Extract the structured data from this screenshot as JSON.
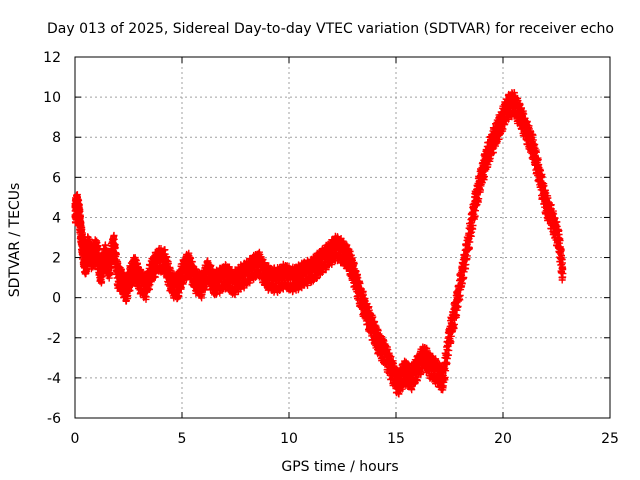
{
  "chart_data": {
    "type": "scatter",
    "title": "Day 013 of 2025, Sidereal Day-to-day VTEC variation (SDTVAR) for receiver echo",
    "xlabel": "GPS time / hours",
    "ylabel": "SDTVAR / TECUs",
    "xlim": [
      0,
      25
    ],
    "ylim": [
      -6,
      12
    ],
    "xticks": [
      "0",
      "5",
      "10",
      "15",
      "20",
      "25"
    ],
    "yticks": [
      "-6",
      "-4",
      "-2",
      "0",
      "2",
      "4",
      "6",
      "8",
      "10",
      "12"
    ],
    "grid": true,
    "marker": "plus",
    "color": "#ff0000",
    "series": [
      {
        "name": "SDTVAR",
        "x": [
          0.0,
          0.1,
          0.2,
          0.3,
          0.4,
          0.5,
          0.6,
          0.8,
          1.0,
          1.2,
          1.4,
          1.6,
          1.8,
          2.0,
          2.2,
          2.4,
          2.6,
          2.8,
          3.0,
          3.3,
          3.6,
          3.9,
          4.2,
          4.5,
          4.8,
          5.0,
          5.3,
          5.6,
          5.9,
          6.2,
          6.5,
          6.8,
          7.1,
          7.4,
          7.7,
          8.0,
          8.3,
          8.6,
          8.9,
          9.2,
          9.5,
          9.8,
          10.1,
          10.4,
          10.7,
          11.0,
          11.3,
          11.6,
          11.9,
          12.2,
          12.5,
          12.8,
          13.0,
          13.3,
          13.6,
          13.9,
          14.2,
          14.5,
          14.8,
          15.1,
          15.4,
          15.7,
          16.0,
          16.3,
          16.6,
          16.9,
          17.2,
          17.5,
          17.8,
          18.1,
          18.4,
          18.7,
          19.0,
          19.3,
          19.6,
          19.9,
          20.2,
          20.5,
          20.8,
          21.1,
          21.4,
          21.7,
          22.0,
          22.3,
          22.6,
          22.8
        ],
        "y": [
          4.4,
          4.7,
          4.2,
          3.1,
          2.3,
          1.7,
          2.6,
          2.1,
          2.5,
          1.3,
          2.2,
          1.6,
          2.8,
          1.2,
          0.9,
          0.5,
          1.2,
          1.6,
          1.0,
          0.6,
          1.5,
          2.0,
          1.9,
          0.8,
          0.6,
          1.3,
          1.8,
          1.0,
          0.7,
          1.4,
          0.8,
          1.0,
          1.2,
          0.8,
          1.1,
          1.3,
          1.6,
          1.8,
          1.2,
          1.0,
          1.0,
          1.2,
          1.0,
          1.1,
          1.3,
          1.4,
          1.7,
          2.0,
          2.3,
          2.6,
          2.4,
          2.0,
          1.4,
          0.3,
          -0.6,
          -1.4,
          -2.2,
          -2.7,
          -3.5,
          -4.2,
          -3.6,
          -3.9,
          -3.4,
          -2.8,
          -3.3,
          -3.6,
          -4.0,
          -1.8,
          -0.4,
          1.3,
          3.0,
          4.8,
          6.2,
          7.3,
          8.1,
          8.8,
          9.6,
          9.8,
          9.2,
          8.4,
          7.6,
          6.2,
          4.8,
          4.0,
          3.0,
          1.2
        ]
      }
    ]
  }
}
